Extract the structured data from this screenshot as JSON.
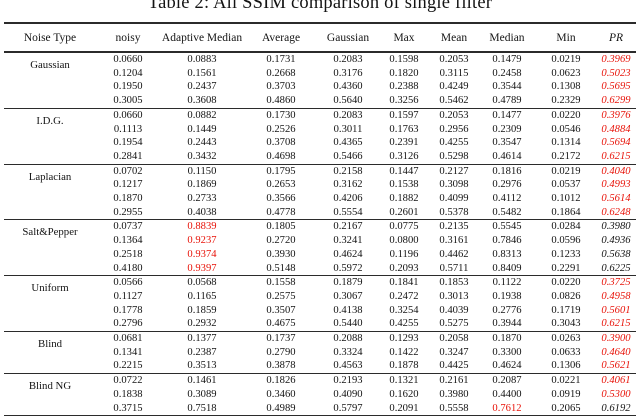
{
  "title": "Table 2: All SSIM comparison of single filter",
  "colors": {
    "highlight_red": "#e81309",
    "text": "#141414",
    "rule": "#2b2b2b"
  },
  "chart_data": {
    "type": "table",
    "title": "Table 2: All SSIM comparison of single filter",
    "note": "red values indicate highlighted best results; PR column italic"
  },
  "table": {
    "columns": [
      "Noise Type",
      "noisy",
      "Adaptive Median",
      "Average",
      "Gaussian",
      "Max",
      "Mean",
      "Median",
      "Min",
      "PR"
    ],
    "groups": [
      {
        "label": "Gaussian",
        "rows": [
          {
            "values": [
              "0.0660",
              "0.0883",
              "0.1731",
              "0.2083",
              "0.1598",
              "0.2053",
              "0.1479",
              "0.0219",
              "0.3969"
            ],
            "red_cols": [
              8
            ]
          },
          {
            "values": [
              "0.1204",
              "0.1561",
              "0.2668",
              "0.3176",
              "0.1820",
              "0.3115",
              "0.2458",
              "0.0623",
              "0.5023"
            ],
            "red_cols": [
              8
            ]
          },
          {
            "values": [
              "0.1950",
              "0.2437",
              "0.3703",
              "0.4360",
              "0.2388",
              "0.4249",
              "0.3544",
              "0.1308",
              "0.5695"
            ],
            "red_cols": [
              8
            ]
          },
          {
            "values": [
              "0.3005",
              "0.3608",
              "0.4860",
              "0.5640",
              "0.3256",
              "0.5462",
              "0.4789",
              "0.2329",
              "0.6299"
            ],
            "red_cols": [
              8
            ]
          }
        ]
      },
      {
        "label": "I.D.G.",
        "rows": [
          {
            "values": [
              "0.0660",
              "0.0882",
              "0.1730",
              "0.2083",
              "0.1597",
              "0.2053",
              "0.1477",
              "0.0220",
              "0.3976"
            ],
            "red_cols": [
              8
            ]
          },
          {
            "values": [
              "0.1113",
              "0.1449",
              "0.2526",
              "0.3011",
              "0.1763",
              "0.2956",
              "0.2309",
              "0.0546",
              "0.4884"
            ],
            "red_cols": [
              8
            ]
          },
          {
            "values": [
              "0.1954",
              "0.2443",
              "0.3708",
              "0.4365",
              "0.2391",
              "0.4255",
              "0.3547",
              "0.1314",
              "0.5694"
            ],
            "red_cols": [
              8
            ]
          },
          {
            "values": [
              "0.2841",
              "0.3432",
              "0.4698",
              "0.5466",
              "0.3126",
              "0.5298",
              "0.4614",
              "0.2172",
              "0.6215"
            ],
            "red_cols": [
              8
            ]
          }
        ]
      },
      {
        "label": "Laplacian",
        "rows": [
          {
            "values": [
              "0.0702",
              "0.1150",
              "0.1795",
              "0.2158",
              "0.1447",
              "0.2127",
              "0.1816",
              "0.0219",
              "0.4040"
            ],
            "red_cols": [
              8
            ]
          },
          {
            "values": [
              "0.1217",
              "0.1869",
              "0.2653",
              "0.3162",
              "0.1538",
              "0.3098",
              "0.2976",
              "0.0537",
              "0.4993"
            ],
            "red_cols": [
              8
            ]
          },
          {
            "values": [
              "0.1870",
              "0.2733",
              "0.3566",
              "0.4206",
              "0.1882",
              "0.4099",
              "0.4112",
              "0.1012",
              "0.5614"
            ],
            "red_cols": [
              8
            ]
          },
          {
            "values": [
              "0.2955",
              "0.4038",
              "0.4778",
              "0.5554",
              "0.2601",
              "0.5378",
              "0.5482",
              "0.1864",
              "0.6248"
            ],
            "red_cols": [
              8
            ]
          }
        ]
      },
      {
        "label": "Salt&Pepper",
        "rows": [
          {
            "values": [
              "0.0737",
              "0.8839",
              "0.1805",
              "0.2167",
              "0.0775",
              "0.2135",
              "0.5545",
              "0.0284",
              "0.3980"
            ],
            "red_cols": [
              1
            ]
          },
          {
            "values": [
              "0.1364",
              "0.9237",
              "0.2720",
              "0.3241",
              "0.0800",
              "0.3161",
              "0.7846",
              "0.0596",
              "0.4936"
            ],
            "red_cols": [
              1
            ]
          },
          {
            "values": [
              "0.2518",
              "0.9374",
              "0.3930",
              "0.4624",
              "0.1196",
              "0.4462",
              "0.8313",
              "0.1233",
              "0.5638"
            ],
            "red_cols": [
              1
            ]
          },
          {
            "values": [
              "0.4180",
              "0.9397",
              "0.5148",
              "0.5972",
              "0.2093",
              "0.5711",
              "0.8409",
              "0.2291",
              "0.6225"
            ],
            "red_cols": [
              1
            ]
          }
        ]
      },
      {
        "label": "Uniform",
        "rows": [
          {
            "values": [
              "0.0566",
              "0.0568",
              "0.1558",
              "0.1879",
              "0.1841",
              "0.1853",
              "0.1122",
              "0.0220",
              "0.3725"
            ],
            "red_cols": [
              8
            ]
          },
          {
            "values": [
              "0.1127",
              "0.1165",
              "0.2575",
              "0.3067",
              "0.2472",
              "0.3013",
              "0.1938",
              "0.0826",
              "0.4958"
            ],
            "red_cols": [
              8
            ]
          },
          {
            "values": [
              "0.1778",
              "0.1859",
              "0.3507",
              "0.4138",
              "0.3254",
              "0.4039",
              "0.2776",
              "0.1719",
              "0.5601"
            ],
            "red_cols": [
              8
            ]
          },
          {
            "values": [
              "0.2796",
              "0.2932",
              "0.4675",
              "0.5440",
              "0.4255",
              "0.5275",
              "0.3944",
              "0.3043",
              "0.6215"
            ],
            "red_cols": [
              8
            ]
          }
        ]
      },
      {
        "label": "Blind",
        "rows": [
          {
            "values": [
              "0.0681",
              "0.1377",
              "0.1737",
              "0.2088",
              "0.1293",
              "0.2058",
              "0.1870",
              "0.0263",
              "0.3900"
            ],
            "red_cols": [
              8
            ]
          },
          {
            "values": [
              "0.1341",
              "0.2387",
              "0.2790",
              "0.3324",
              "0.1422",
              "0.3247",
              "0.3300",
              "0.0633",
              "0.4640"
            ],
            "red_cols": [
              8
            ]
          },
          {
            "values": [
              "0.2215",
              "0.3513",
              "0.3878",
              "0.4563",
              "0.1878",
              "0.4425",
              "0.4624",
              "0.1306",
              "0.5621"
            ],
            "red_cols": [
              8
            ]
          }
        ]
      },
      {
        "label": "Blind NG",
        "rows": [
          {
            "values": [
              "0.0722",
              "0.1461",
              "0.1826",
              "0.2193",
              "0.1321",
              "0.2161",
              "0.2087",
              "0.0221",
              "0.4061"
            ],
            "red_cols": [
              8
            ]
          },
          {
            "values": [
              "0.1838",
              "0.3089",
              "0.3460",
              "0.4090",
              "0.1620",
              "0.3980",
              "0.4400",
              "0.0919",
              "0.5300"
            ],
            "red_cols": [
              8
            ]
          },
          {
            "values": [
              "0.3715",
              "0.7518",
              "0.4989",
              "0.5797",
              "0.2091",
              "0.5558",
              "0.7612",
              "0.2065",
              "0.6192"
            ],
            "red_cols": [
              6
            ]
          }
        ]
      }
    ]
  }
}
